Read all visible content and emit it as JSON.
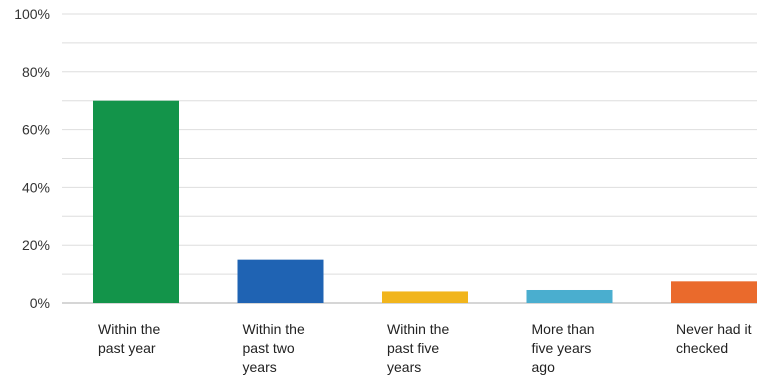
{
  "chart_data": {
    "type": "bar",
    "title": "",
    "xlabel": "",
    "ylabel": "",
    "ylim": [
      0,
      100
    ],
    "y_ticks": [
      "0%",
      "20%",
      "40%",
      "60%",
      "80%",
      "100%"
    ],
    "grid": true,
    "categories": [
      [
        "Within the",
        "past year"
      ],
      [
        "Within the",
        "past two",
        "years"
      ],
      [
        "Within the",
        "past five",
        "years"
      ],
      [
        "More than",
        "five years",
        "ago"
      ],
      [
        "Never had it",
        "checked"
      ]
    ],
    "values": [
      70,
      15,
      4,
      4.5,
      7.5
    ],
    "colors": [
      "#13944a",
      "#1f63b3",
      "#f1b51c",
      "#4aaecf",
      "#ea6a2c"
    ]
  }
}
